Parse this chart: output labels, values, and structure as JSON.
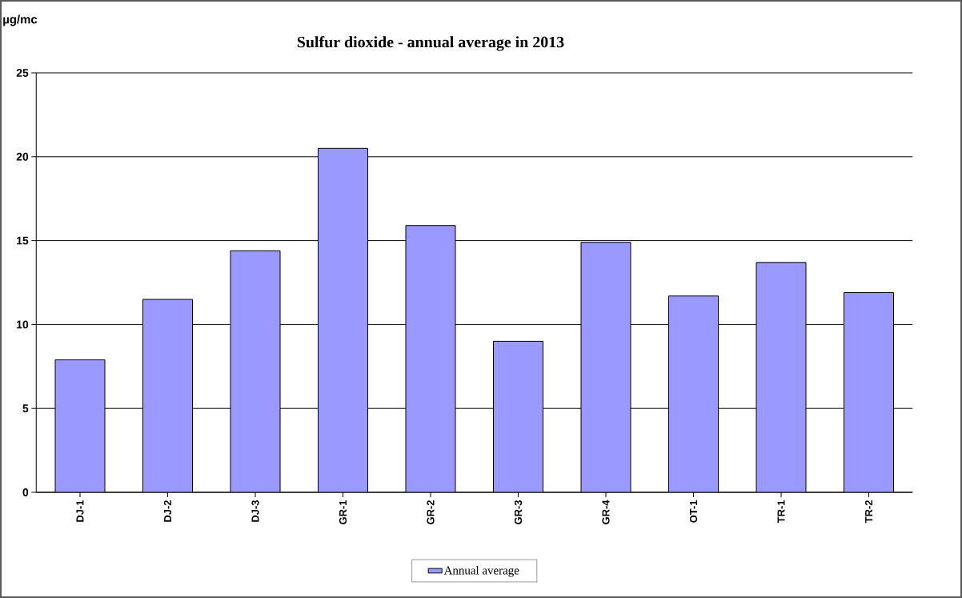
{
  "chart_data": {
    "type": "bar",
    "title": "Sulfur dioxide - annual average in 2013",
    "ylabel": "µg/mc",
    "categories": [
      "DJ-1",
      "DJ-2",
      "DJ-3",
      "GR-1",
      "GR-2",
      "GR-3",
      "GR-4",
      "OT-1",
      "TR-1",
      "TR-2"
    ],
    "series": [
      {
        "name": "Annual average",
        "color": "#9999ff",
        "values": [
          7.9,
          11.5,
          14.4,
          20.5,
          15.9,
          9.0,
          14.9,
          11.7,
          13.7,
          11.9
        ]
      }
    ],
    "ylim": [
      0,
      25
    ],
    "yticks": [
      0,
      5,
      10,
      15,
      20,
      25
    ],
    "grid": "y",
    "legend": "bottom"
  }
}
